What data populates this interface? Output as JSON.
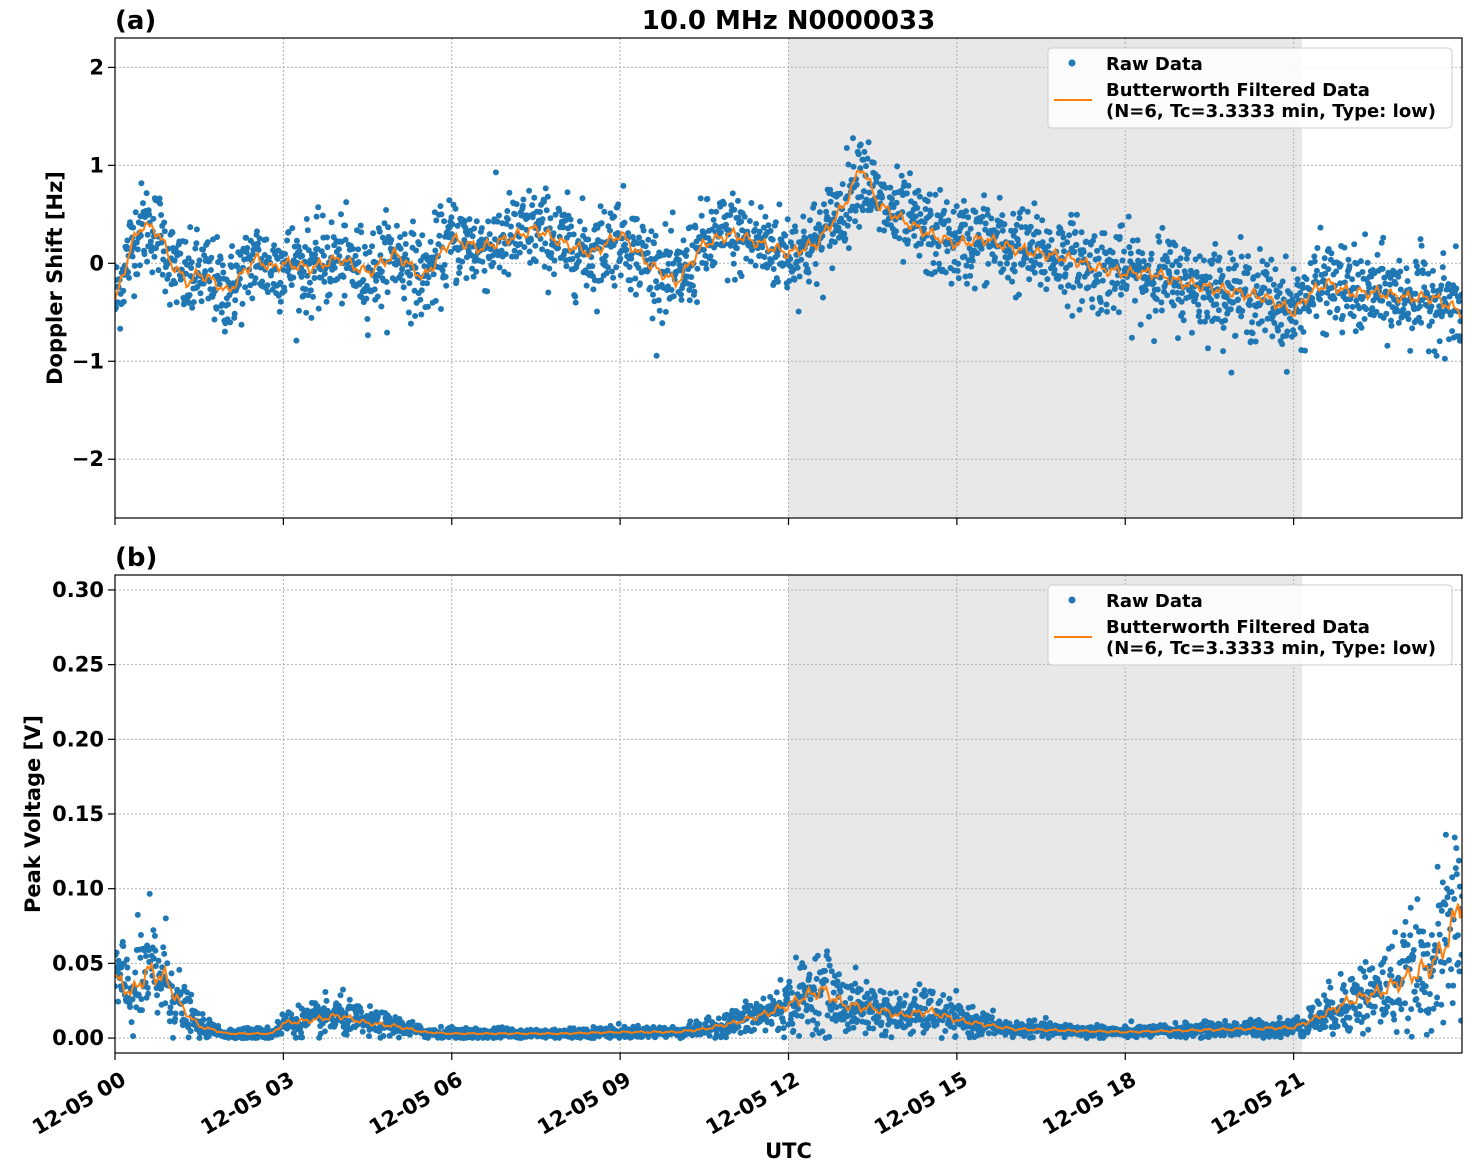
{
  "chart_data": [
    {
      "type": "scatter",
      "panel_label": "(a)",
      "title": "10.0 MHz N0000033",
      "xlabel": "",
      "ylabel": "Doppler Shift [Hz]",
      "xlim": [
        0,
        24
      ],
      "ylim": [
        -2.6,
        2.3
      ],
      "yticks": [
        -2,
        -1,
        0,
        1,
        2
      ],
      "ytick_labels": [
        "−2",
        "−1",
        "0",
        "1",
        "2"
      ],
      "xticks": [
        0,
        3,
        6,
        9,
        12,
        15,
        18,
        21
      ],
      "xtick_labels": [],
      "shaded_span": [
        12.0,
        21.15
      ],
      "grid": true,
      "legend": {
        "placement": "top-right",
        "entries": [
          {
            "label": "Raw Data",
            "kind": "marker"
          },
          {
            "label": "Butterworth Filtered Data",
            "label2": "(N=6, Tc=3.3333 min, Type: low)",
            "kind": "line"
          }
        ]
      },
      "colors": {
        "raw": "#1f77b4",
        "filtered": "#ff7f0e",
        "shade": "#e8e8e8"
      },
      "series": [
        {
          "name": "Raw Data",
          "spread": 0.22,
          "x": [
            0.0,
            0.3,
            0.5,
            0.8,
            1.0,
            1.3,
            1.5,
            1.8,
            2.0,
            2.5,
            2.8,
            3.0,
            3.5,
            4.0,
            4.5,
            5.0,
            5.5,
            6.0,
            6.5,
            7.0,
            7.5,
            8.0,
            8.5,
            9.0,
            9.5,
            10.0,
            10.5,
            11.0,
            11.5,
            12.0,
            12.5,
            13.0,
            13.3,
            13.6,
            14.0,
            14.5,
            15.0,
            15.5,
            16.0,
            16.5,
            17.0,
            17.5,
            18.0,
            18.5,
            19.0,
            19.5,
            20.0,
            20.5,
            21.0,
            21.3,
            21.6,
            22.0,
            22.5,
            23.0,
            23.5,
            24.0
          ],
          "y": [
            -0.4,
            0.2,
            0.4,
            0.3,
            0.0,
            -0.2,
            -0.1,
            -0.2,
            -0.3,
            0.05,
            -0.05,
            0.0,
            -0.05,
            0.05,
            -0.1,
            0.1,
            -0.15,
            0.25,
            0.15,
            0.25,
            0.35,
            0.2,
            0.1,
            0.3,
            0.0,
            -0.2,
            0.2,
            0.3,
            0.2,
            0.1,
            0.2,
            0.6,
            1.0,
            0.6,
            0.45,
            0.3,
            0.2,
            0.25,
            0.15,
            0.1,
            0.05,
            -0.05,
            -0.1,
            -0.1,
            -0.2,
            -0.25,
            -0.3,
            -0.35,
            -0.5,
            -0.3,
            -0.2,
            -0.3,
            -0.3,
            -0.35,
            -0.35,
            -0.5
          ]
        },
        {
          "name": "Butterworth Filtered Data",
          "x": [
            0.0,
            0.3,
            0.5,
            0.8,
            1.0,
            1.3,
            1.5,
            1.8,
            2.0,
            2.5,
            2.8,
            3.0,
            3.5,
            4.0,
            4.5,
            5.0,
            5.5,
            6.0,
            6.5,
            7.0,
            7.5,
            8.0,
            8.5,
            9.0,
            9.5,
            10.0,
            10.5,
            11.0,
            11.5,
            12.0,
            12.5,
            13.0,
            13.3,
            13.6,
            14.0,
            14.5,
            15.0,
            15.5,
            16.0,
            16.5,
            17.0,
            17.5,
            18.0,
            18.5,
            19.0,
            19.5,
            20.0,
            20.5,
            21.0,
            21.3,
            21.6,
            22.0,
            22.5,
            23.0,
            23.5,
            24.0
          ],
          "y": [
            -0.4,
            0.2,
            0.4,
            0.3,
            0.0,
            -0.2,
            -0.1,
            -0.2,
            -0.3,
            0.05,
            -0.05,
            0.0,
            -0.05,
            0.05,
            -0.1,
            0.1,
            -0.15,
            0.25,
            0.15,
            0.25,
            0.35,
            0.2,
            0.1,
            0.3,
            0.0,
            -0.2,
            0.2,
            0.3,
            0.2,
            0.1,
            0.2,
            0.6,
            1.0,
            0.6,
            0.45,
            0.3,
            0.2,
            0.25,
            0.15,
            0.1,
            0.05,
            -0.05,
            -0.1,
            -0.1,
            -0.2,
            -0.25,
            -0.3,
            -0.35,
            -0.5,
            -0.3,
            -0.2,
            -0.3,
            -0.3,
            -0.35,
            -0.35,
            -0.5
          ]
        }
      ]
    },
    {
      "type": "scatter",
      "panel_label": "(b)",
      "title": "",
      "xlabel": "UTC",
      "ylabel": "Peak Voltage [V]",
      "xlim": [
        0,
        24
      ],
      "ylim": [
        -0.01,
        0.31
      ],
      "yticks": [
        0.0,
        0.05,
        0.1,
        0.15,
        0.2,
        0.25,
        0.3
      ],
      "ytick_labels": [
        "0.00",
        "0.05",
        "0.10",
        "0.15",
        "0.20",
        "0.25",
        "0.30"
      ],
      "xticks": [
        0,
        3,
        6,
        9,
        12,
        15,
        18,
        21
      ],
      "xtick_labels": [
        "12-05 00",
        "12-05 03",
        "12-05 06",
        "12-05 09",
        "12-05 12",
        "12-05 15",
        "12-05 18",
        "12-05 21"
      ],
      "shaded_span": [
        12.0,
        21.15
      ],
      "grid": true,
      "legend": {
        "placement": "top-right",
        "entries": [
          {
            "label": "Raw Data",
            "kind": "marker"
          },
          {
            "label": "Butterworth Filtered Data",
            "label2": "(N=6, Tc=3.3333 min, Type: low)",
            "kind": "line"
          }
        ]
      },
      "colors": {
        "raw": "#1f77b4",
        "filtered": "#ff7f0e",
        "shade": "#e8e8e8"
      },
      "series": [
        {
          "name": "Raw Data",
          "spread": 0.45,
          "x": [
            0.0,
            0.3,
            0.6,
            0.9,
            1.2,
            1.5,
            1.8,
            2.0,
            2.5,
            2.8,
            3.0,
            3.5,
            4.0,
            4.5,
            5.0,
            5.5,
            6.0,
            7.0,
            8.0,
            9.0,
            10.0,
            10.5,
            11.0,
            11.5,
            12.0,
            12.3,
            12.6,
            13.0,
            13.5,
            14.0,
            14.5,
            15.0,
            15.5,
            16.0,
            17.0,
            18.0,
            19.0,
            20.0,
            21.0,
            21.5,
            22.0,
            22.5,
            23.0,
            23.5,
            23.8,
            24.0
          ],
          "y": [
            0.04,
            0.03,
            0.045,
            0.04,
            0.02,
            0.008,
            0.005,
            0.003,
            0.003,
            0.003,
            0.01,
            0.012,
            0.015,
            0.01,
            0.008,
            0.004,
            0.003,
            0.003,
            0.003,
            0.004,
            0.004,
            0.006,
            0.01,
            0.015,
            0.022,
            0.028,
            0.032,
            0.022,
            0.02,
            0.015,
            0.018,
            0.012,
            0.009,
            0.006,
            0.005,
            0.004,
            0.005,
            0.006,
            0.007,
            0.015,
            0.025,
            0.03,
            0.04,
            0.05,
            0.07,
            0.1
          ]
        },
        {
          "name": "Butterworth Filtered Data",
          "x": [
            0.0,
            0.3,
            0.6,
            0.9,
            1.2,
            1.5,
            1.8,
            2.0,
            2.5,
            2.8,
            3.0,
            3.5,
            4.0,
            4.5,
            5.0,
            5.5,
            6.0,
            7.0,
            8.0,
            9.0,
            10.0,
            10.5,
            11.0,
            11.5,
            12.0,
            12.3,
            12.6,
            13.0,
            13.5,
            14.0,
            14.5,
            15.0,
            15.5,
            16.0,
            17.0,
            18.0,
            19.0,
            20.0,
            21.0,
            21.5,
            22.0,
            22.5,
            23.0,
            23.5,
            23.8,
            24.0
          ],
          "y": [
            0.04,
            0.03,
            0.045,
            0.04,
            0.02,
            0.008,
            0.005,
            0.003,
            0.003,
            0.003,
            0.01,
            0.012,
            0.015,
            0.01,
            0.008,
            0.004,
            0.003,
            0.003,
            0.003,
            0.004,
            0.004,
            0.006,
            0.01,
            0.015,
            0.022,
            0.028,
            0.032,
            0.022,
            0.02,
            0.015,
            0.018,
            0.012,
            0.009,
            0.006,
            0.005,
            0.004,
            0.005,
            0.006,
            0.007,
            0.015,
            0.025,
            0.03,
            0.04,
            0.05,
            0.07,
            0.1
          ]
        }
      ]
    }
  ]
}
